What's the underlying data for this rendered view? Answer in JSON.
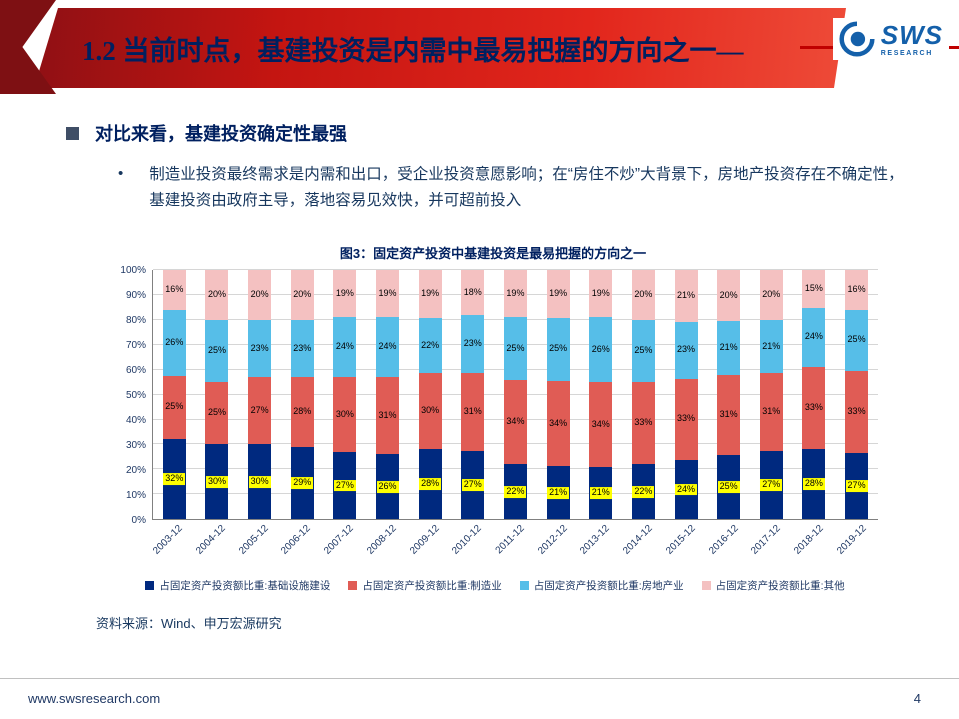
{
  "header": {
    "title": "1.2 当前时点，基建投资是内需中最易把握的方向之一—",
    "logo_text": "SWS",
    "logo_subtext": "RESEARCH"
  },
  "body": {
    "bullet_marker": "•",
    "section_heading": "对比来看，基建投资确定性最强",
    "bullet_text": "制造业投资最终需求是内需和出口，受企业投资意愿影响；在“房住不炒”大背景下，房地产投资存在不确定性，基建投资由政府主导，落地容易见效快，并可超前投入"
  },
  "chart_data": {
    "type": "bar",
    "stacked": true,
    "percent": true,
    "title": "图3：固定资产投资中基建投资是最易把握的方向之一",
    "categories": [
      "2003-12",
      "2004-12",
      "2005-12",
      "2006-12",
      "2007-12",
      "2008-12",
      "2009-12",
      "2010-12",
      "2011-12",
      "2012-12",
      "2013-12",
      "2014-12",
      "2015-12",
      "2016-12",
      "2017-12",
      "2018-12",
      "2019-12"
    ],
    "series": [
      {
        "name": "占固定资产投资额比重:基础设施建设",
        "color": "#00297F",
        "values": [
          32,
          30,
          30,
          29,
          27,
          26,
          28,
          27,
          22,
          21,
          21,
          22,
          24,
          25,
          27,
          28,
          27
        ]
      },
      {
        "name": "占固定资产投资额比重:制造业",
        "color": "#E05C55",
        "values": [
          25,
          25,
          27,
          28,
          30,
          31,
          30,
          31,
          34,
          34,
          34,
          33,
          33,
          31,
          31,
          33,
          33
        ]
      },
      {
        "name": "占固定资产投资额比重:房地产业",
        "color": "#56BEE8",
        "values": [
          26,
          25,
          23,
          23,
          24,
          24,
          22,
          23,
          25,
          25,
          26,
          25,
          23,
          21,
          21,
          24,
          25
        ]
      },
      {
        "name": "占固定资产投资额比重:其他",
        "color": "#F4C1C1",
        "values": [
          16,
          20,
          20,
          20,
          19,
          19,
          19,
          18,
          19,
          19,
          19,
          20,
          21,
          20,
          20,
          15,
          16
        ]
      }
    ],
    "ylim": [
      0,
      100
    ],
    "ytick_step": 10,
    "ytick_suffix": "%",
    "grid": true,
    "legend_position": "bottom",
    "highlight": {
      "series": 0,
      "color": "#FFFF00"
    }
  },
  "source": "资料来源：Wind、申万宏源研究",
  "footer": {
    "url": "www.swsresearch.com",
    "page": "4"
  }
}
